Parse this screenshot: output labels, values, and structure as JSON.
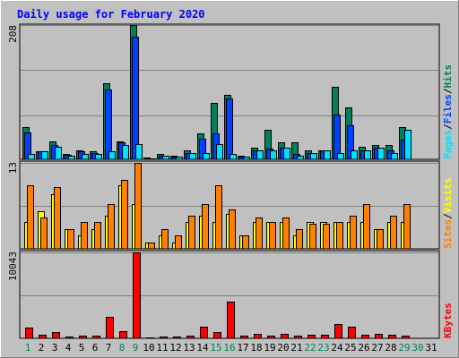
{
  "title": "Daily usage for February 2020",
  "chart_data": [
    {
      "type": "bar",
      "panel": "hits-files-pages",
      "ymax_label": "208",
      "right_labels": [
        "Pages",
        "/",
        "Files",
        "/",
        "Hits"
      ],
      "categories": [
        "1",
        "2",
        "3",
        "4",
        "5",
        "6",
        "7",
        "8",
        "9",
        "10",
        "11",
        "12",
        "13",
        "14",
        "15",
        "16",
        "17",
        "18",
        "19",
        "20",
        "21",
        "22",
        "23",
        "24",
        "25",
        "26",
        "27",
        "28",
        "29",
        "30",
        "31"
      ],
      "weekend_days": [
        "1",
        "8",
        "9",
        "15",
        "16",
        "22",
        "23",
        "29",
        "30"
      ],
      "ylim": [
        0,
        208
      ],
      "series": [
        {
          "name": "Hits",
          "color": "#00805c",
          "values": [
            50,
            12,
            28,
            8,
            14,
            12,
            118,
            28,
            208,
            3,
            9,
            6,
            14,
            40,
            88,
            100,
            5,
            18,
            46,
            26,
            27,
            14,
            14,
            112,
            80,
            19,
            22,
            22,
            50,
            0,
            0
          ]
        },
        {
          "name": "Files",
          "color": "#0040ff",
          "values": [
            42,
            12,
            22,
            7,
            12,
            10,
            108,
            26,
            190,
            2,
            6,
            4,
            10,
            32,
            40,
            94,
            4,
            14,
            16,
            18,
            8,
            10,
            14,
            70,
            52,
            14,
            18,
            14,
            30,
            0,
            0
          ]
        },
        {
          "name": "Pages",
          "color": "#00e0ff",
          "values": [
            8,
            12,
            20,
            6,
            8,
            8,
            12,
            22,
            24,
            2,
            6,
            4,
            10,
            10,
            24,
            8,
            4,
            14,
            14,
            18,
            6,
            10,
            14,
            10,
            14,
            14,
            18,
            10,
            46,
            0,
            0
          ]
        }
      ]
    },
    {
      "type": "bar",
      "panel": "visits-sites",
      "ymax_label": "13",
      "right_labels": [
        "Sites",
        "/",
        "Visits"
      ],
      "categories": [
        "1",
        "2",
        "3",
        "4",
        "5",
        "6",
        "7",
        "8",
        "9",
        "10",
        "11",
        "12",
        "13",
        "14",
        "15",
        "16",
        "17",
        "18",
        "19",
        "20",
        "21",
        "22",
        "23",
        "24",
        "25",
        "26",
        "27",
        "28",
        "29",
        "30",
        "31"
      ],
      "ylim": [
        0,
        13
      ],
      "series": [
        {
          "name": "Visits",
          "color": "#ffff00",
          "values": [
            4.0,
            5.7,
            8.2,
            3.0,
            2.0,
            3.0,
            5.0,
            9.6,
            6.8,
            1.0,
            2.0,
            1.0,
            4.0,
            5.0,
            4.0,
            5.3,
            2.0,
            4.0,
            4.0,
            4.0,
            2.0,
            4.0,
            4.0,
            4.0,
            4.0,
            4.0,
            3.0,
            4.0,
            4.0,
            0,
            0
          ]
        },
        {
          "name": "Sites",
          "color": "#ff8000",
          "values": [
            9.6,
            4.8,
            9.4,
            3.0,
            4.0,
            4.0,
            6.8,
            10.4,
            13.0,
            1.0,
            3.0,
            2.0,
            5.0,
            6.8,
            9.6,
            5.9,
            2.0,
            4.8,
            4.0,
            4.8,
            3.0,
            3.8,
            3.8,
            4.0,
            5.0,
            6.8,
            3.0,
            5.0,
            6.8,
            0,
            0
          ]
        }
      ]
    },
    {
      "type": "bar",
      "panel": "kbytes",
      "ymax_label": "10043",
      "right_labels": [
        "KBytes"
      ],
      "categories": [
        "1",
        "2",
        "3",
        "4",
        "5",
        "6",
        "7",
        "8",
        "9",
        "10",
        "11",
        "12",
        "13",
        "14",
        "15",
        "16",
        "17",
        "18",
        "19",
        "20",
        "21",
        "22",
        "23",
        "24",
        "25",
        "26",
        "27",
        "28",
        "29",
        "30",
        "31"
      ],
      "ylim": [
        0,
        10043
      ],
      "series": [
        {
          "name": "KBytes",
          "color": "#ff0000",
          "values": [
            1300,
            420,
            720,
            220,
            280,
            310,
            2500,
            820,
            10043,
            100,
            200,
            260,
            300,
            1350,
            740,
            4300,
            300,
            500,
            300,
            500,
            280,
            400,
            420,
            1650,
            1400,
            430,
            500,
            400,
            360,
            0,
            0
          ]
        }
      ]
    }
  ],
  "colors": {
    "background": "#c0c0c0",
    "title": "#0000ff",
    "weekend_label": "#00805c",
    "weekday_label": "#000000"
  }
}
